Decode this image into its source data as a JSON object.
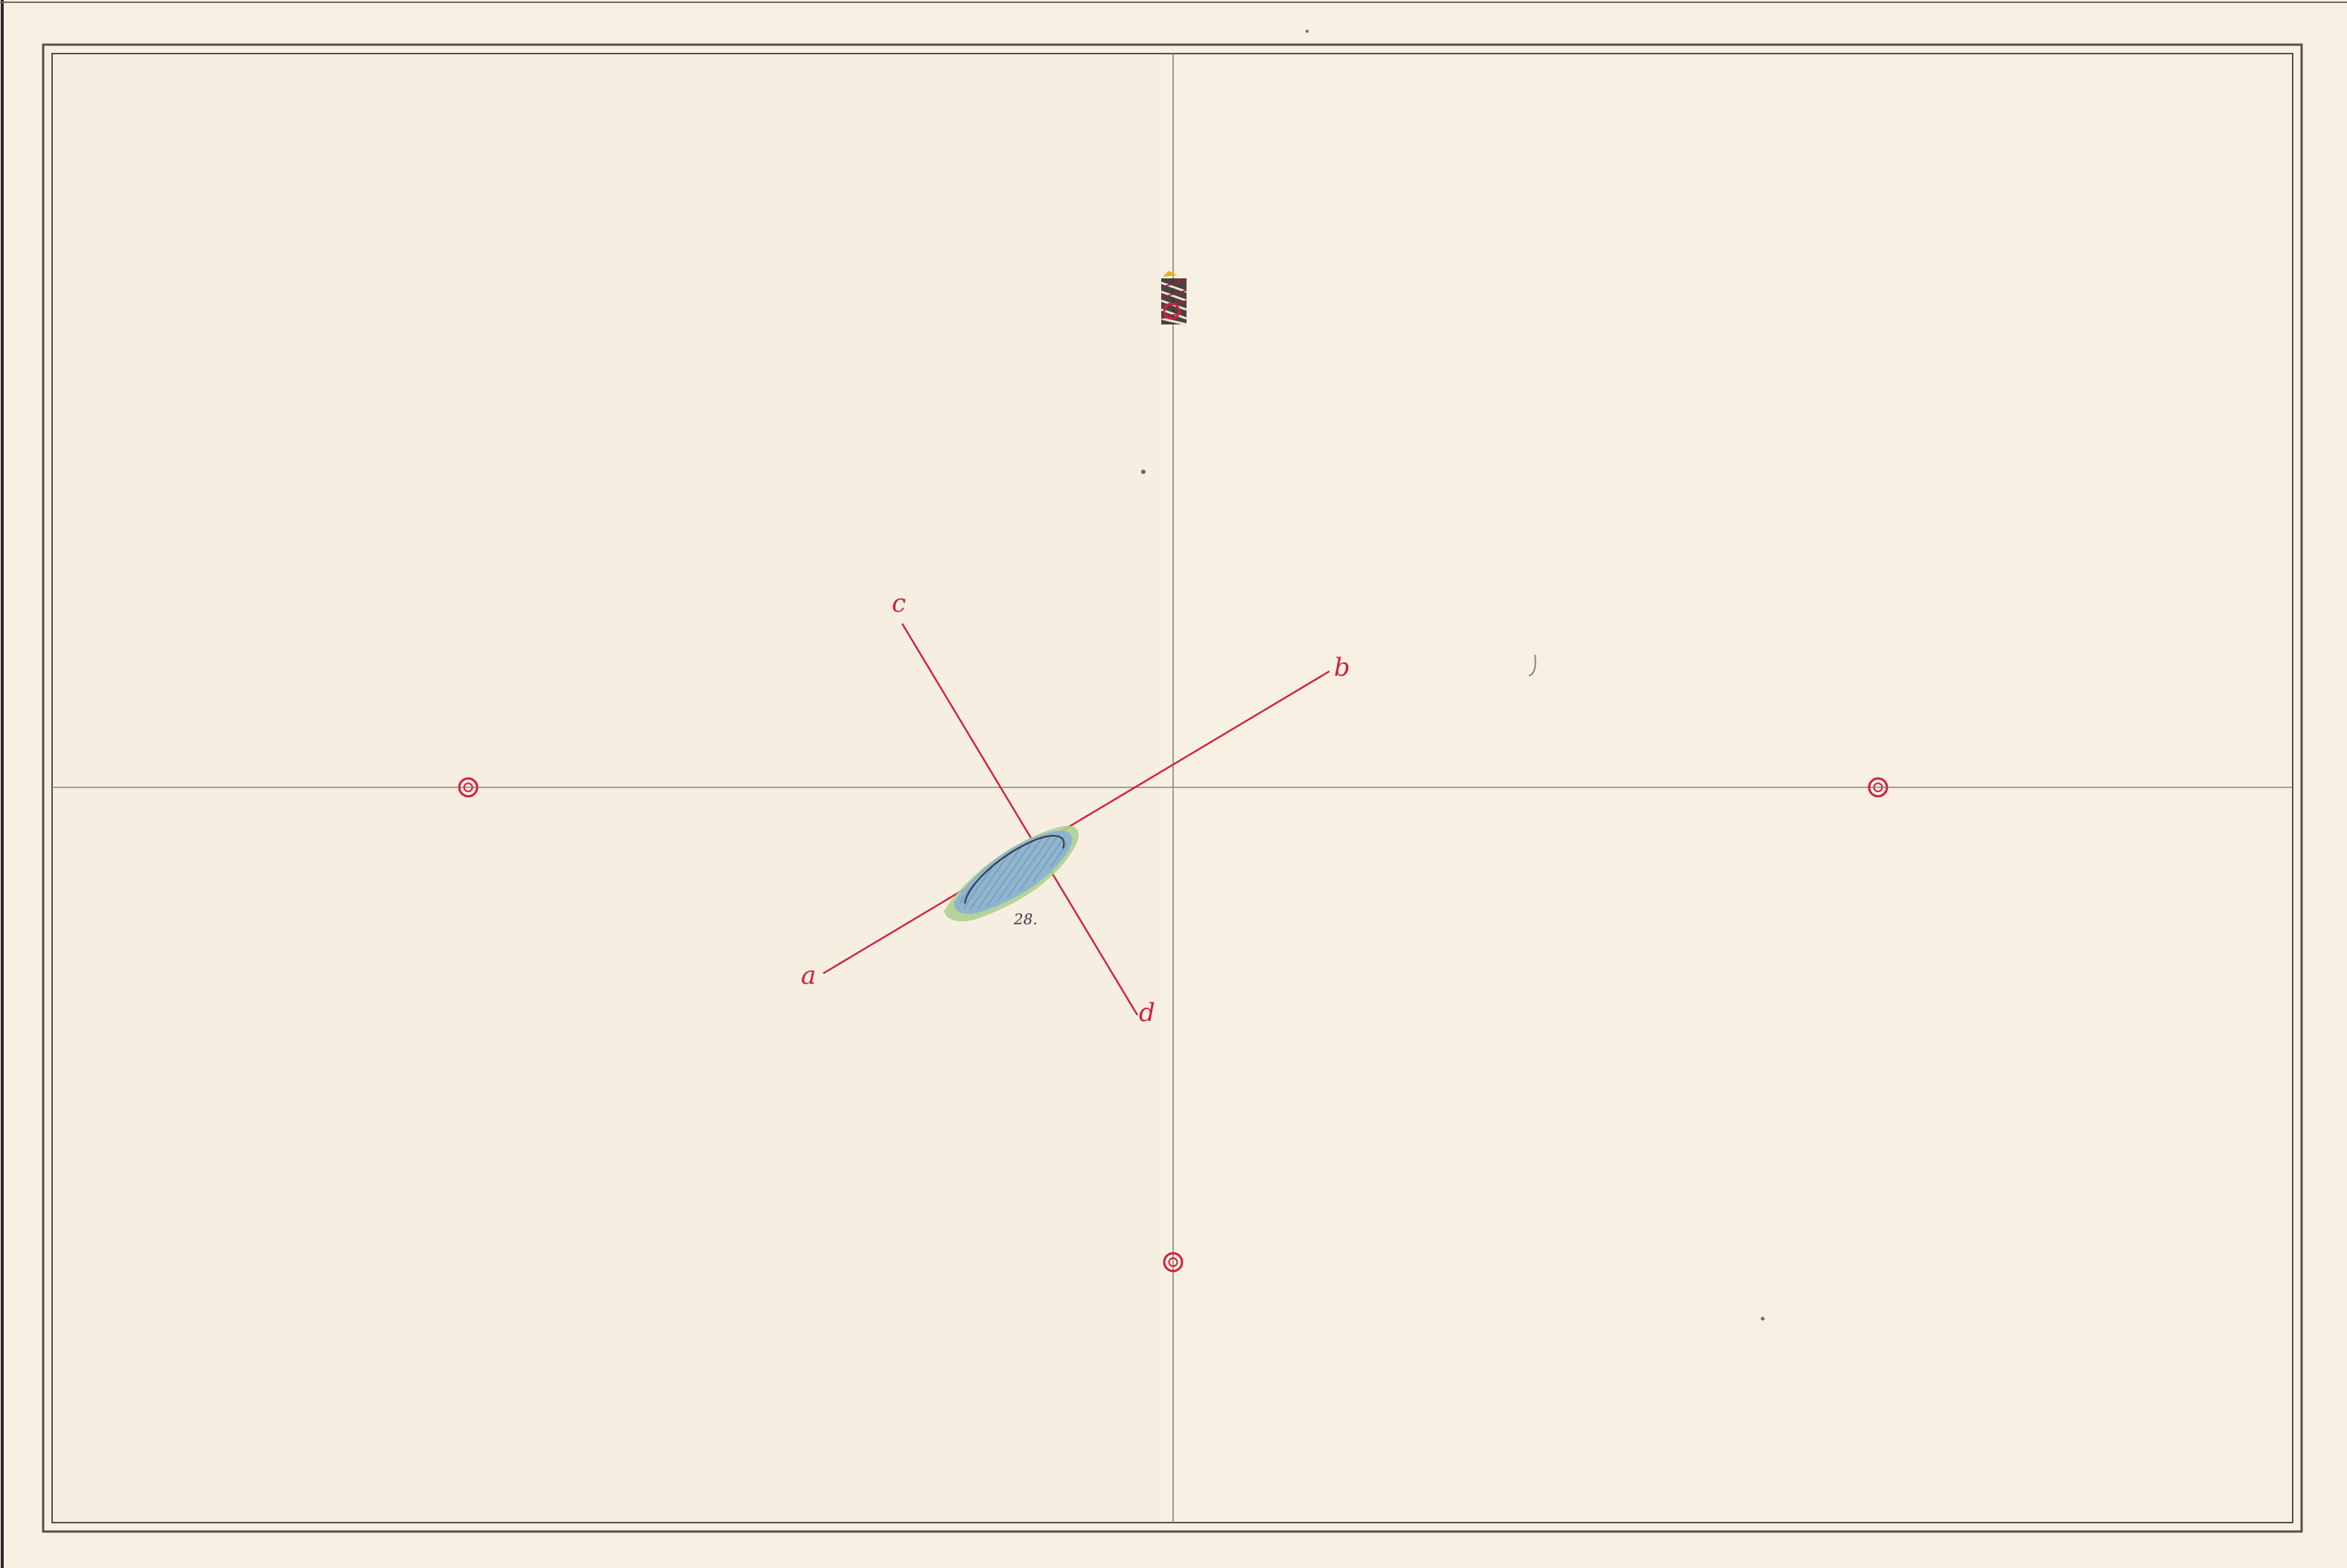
{
  "sheet": {
    "paper_color": "#f8f1e3",
    "frame_color": "#55504a",
    "grid_color": "#8a8580",
    "accent_color": "#d2203c",
    "island_fill": "#8fb4cf",
    "island_shore": "#a9cf8c"
  },
  "axes": {
    "a_label": "a",
    "b_label": "b",
    "c_label": "c",
    "d_label": "d"
  },
  "island": {
    "label": "28."
  },
  "station_marks": [
    {
      "name": "left"
    },
    {
      "name": "right"
    },
    {
      "name": "bottom"
    },
    {
      "name": "top"
    }
  ],
  "lighthouse": {
    "icon": "lighthouse-icon"
  }
}
